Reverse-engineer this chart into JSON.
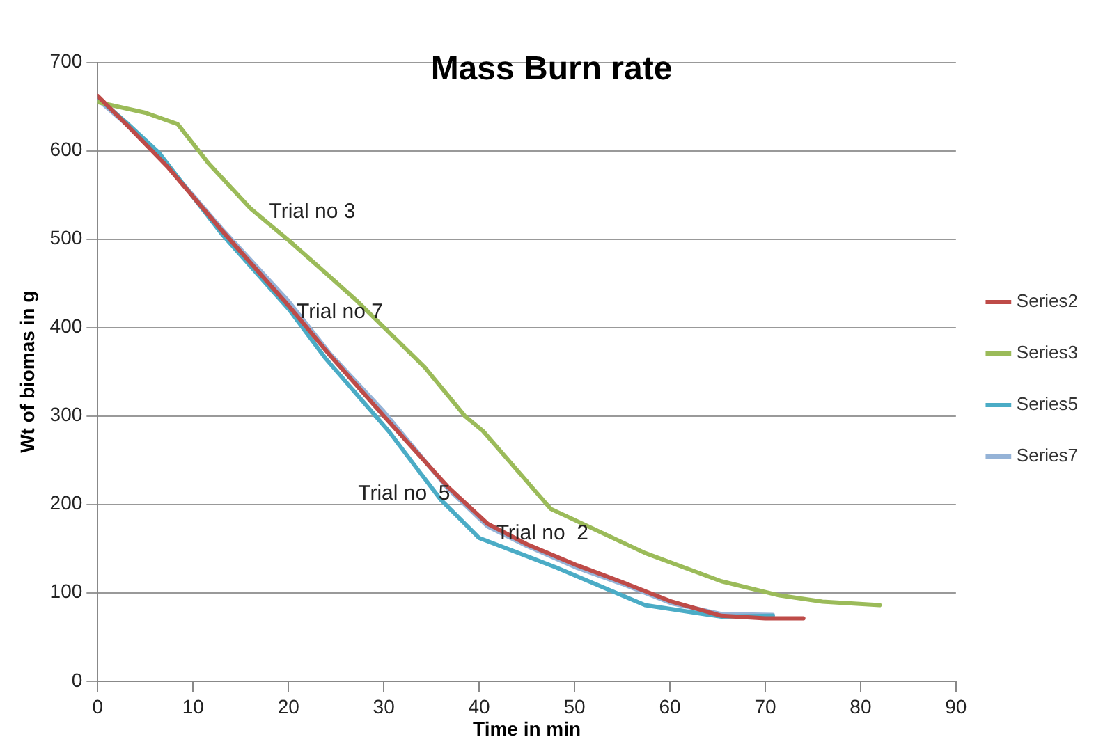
{
  "chart_data": {
    "type": "line",
    "title": "Mass Burn rate",
    "xlabel": "Time in min",
    "ylabel": "Wt of biomas in g",
    "xlim": [
      0,
      90
    ],
    "xticks": [
      0,
      10,
      20,
      30,
      40,
      50,
      60,
      70,
      80,
      90
    ],
    "ylim": [
      0,
      700
    ],
    "yticks": [
      0,
      100,
      200,
      300,
      400,
      500,
      600,
      700
    ],
    "grid": "y",
    "legend": "right",
    "marker": "none",
    "line_style": "solid",
    "series": [
      {
        "name": "Series2",
        "color": "#be4b48",
        "x": [
          0,
          3,
          7.4,
          13,
          20,
          24.4,
          30,
          36.7,
          40.9,
          45,
          50.3,
          55,
          60.2,
          65.4,
          70,
          74
        ],
        "values": [
          662,
          630,
          581,
          510,
          425,
          368,
          300,
          220,
          178,
          155,
          131,
          112,
          90,
          74,
          71,
          71
        ]
      },
      {
        "name": "Series3",
        "color": "#9bbb59",
        "x": [
          0,
          5,
          8.4,
          11.6,
          16,
          20.1,
          24.4,
          27.2,
          34.3,
          38.5,
          40.4,
          47.5,
          57.4,
          65.4,
          71.5,
          76,
          82
        ],
        "values": [
          655,
          643,
          630,
          586,
          535,
          498,
          457,
          430,
          355,
          300,
          283,
          195,
          145,
          113,
          97,
          90,
          86
        ]
      },
      {
        "name": "Series5",
        "color": "#4bacc6",
        "x": [
          0,
          3,
          6.4,
          13,
          20.1,
          23.9,
          30.5,
          33.8,
          36,
          40,
          48,
          57.4,
          65.4,
          70.8
        ],
        "values": [
          660,
          632,
          598,
          506,
          420,
          365,
          283,
          236,
          205,
          162,
          129,
          86,
          73,
          74
        ]
      },
      {
        "name": "Series7",
        "color": "#95b3d7",
        "x": [
          0,
          3,
          7.4,
          13,
          20,
          24.4,
          30,
          36.7,
          40.9,
          45,
          50.3,
          55,
          60.2,
          65.4,
          70.8
        ],
        "values": [
          658,
          630,
          582,
          512,
          430,
          370,
          305,
          218,
          175,
          153,
          128,
          110,
          88,
          76,
          75
        ]
      }
    ],
    "annotations": [
      "Trial no 3",
      "Trial no 7",
      "Trial no  5",
      "Trial no  2"
    ]
  }
}
